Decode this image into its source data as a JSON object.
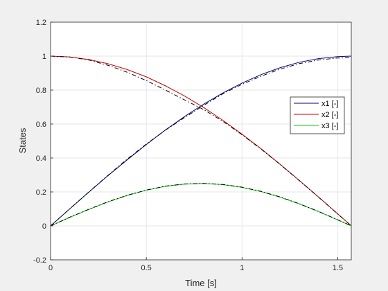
{
  "chart_data": {
    "type": "line",
    "title": "",
    "xlabel": "Time [s]",
    "ylabel": "States",
    "xlim": [
      0,
      1.5708
    ],
    "ylim": [
      -0.2,
      1.2
    ],
    "xticks": [
      0,
      0.5,
      1,
      1.5
    ],
    "xtick_labels": [
      "0",
      "0.5",
      "1",
      "1.5"
    ],
    "yticks": [
      -0.2,
      0,
      0.2,
      0.4,
      0.6,
      0.8,
      1,
      1.2
    ],
    "ytick_labels": [
      "-0.2",
      "0",
      "0.2",
      "0.4",
      "0.6",
      "0.8",
      "1",
      "1.2"
    ],
    "grid": true,
    "legend": {
      "position": "right",
      "entries": [
        "x1 [-]",
        "x2 [-]",
        "x3 [-]"
      ]
    },
    "series": [
      {
        "name": "x1 [-]",
        "color": "#00007f",
        "style": "solid",
        "x": [
          0,
          0.1,
          0.2,
          0.3,
          0.4,
          0.5,
          0.6,
          0.7,
          0.8,
          0.9,
          1.0,
          1.1,
          1.2,
          1.3,
          1.4,
          1.5,
          1.5708
        ],
        "y": [
          0,
          0.1,
          0.199,
          0.296,
          0.389,
          0.479,
          0.565,
          0.644,
          0.717,
          0.783,
          0.841,
          0.891,
          0.932,
          0.964,
          0.985,
          0.997,
          1.0
        ]
      },
      {
        "name": "x2 [-]",
        "color": "#cc0000",
        "style": "solid",
        "x": [
          0,
          0.1,
          0.2,
          0.3,
          0.4,
          0.5,
          0.6,
          0.7,
          0.8,
          0.9,
          1.0,
          1.1,
          1.2,
          1.3,
          1.4,
          1.5,
          1.5708
        ],
        "y": [
          1.0,
          0.995,
          0.98,
          0.955,
          0.921,
          0.878,
          0.825,
          0.765,
          0.697,
          0.622,
          0.54,
          0.454,
          0.362,
          0.267,
          0.17,
          0.071,
          0
        ]
      },
      {
        "name": "x3 [-]",
        "color": "#00cc00",
        "style": "solid",
        "x": [
          0,
          0.1,
          0.2,
          0.3,
          0.4,
          0.5,
          0.6,
          0.7,
          0.8,
          0.9,
          1.0,
          1.1,
          1.2,
          1.3,
          1.4,
          1.5,
          1.5708
        ],
        "y": [
          0,
          0.05,
          0.097,
          0.141,
          0.179,
          0.21,
          0.233,
          0.246,
          0.25,
          0.243,
          0.227,
          0.202,
          0.169,
          0.129,
          0.084,
          0.035,
          0
        ]
      },
      {
        "color": "#000000",
        "style": "dashdot",
        "x": [
          0,
          0.1,
          0.2,
          0.3,
          0.4,
          0.5,
          0.6,
          0.7,
          0.8,
          0.9,
          1.0,
          1.1,
          1.2,
          1.3,
          1.4,
          1.5,
          1.5708
        ],
        "y": [
          0,
          0.1,
          0.2,
          0.298,
          0.393,
          0.482,
          0.564,
          0.638,
          0.71,
          0.778,
          0.834,
          0.882,
          0.924,
          0.956,
          0.977,
          0.989,
          0.99
        ]
      },
      {
        "color": "#000000",
        "style": "dashdot",
        "x": [
          0,
          0.1,
          0.2,
          0.3,
          0.4,
          0.5,
          0.6,
          0.7,
          0.8,
          0.9,
          1.0,
          1.1,
          1.2,
          1.3,
          1.4,
          1.5,
          1.5708
        ],
        "y": [
          1.0,
          0.995,
          0.977,
          0.946,
          0.905,
          0.856,
          0.8,
          0.742,
          0.685,
          0.616,
          0.537,
          0.452,
          0.361,
          0.266,
          0.169,
          0.07,
          0
        ]
      },
      {
        "color": "#000000",
        "style": "dashdot",
        "x": [
          0,
          0.1,
          0.2,
          0.3,
          0.4,
          0.5,
          0.6,
          0.7,
          0.8,
          0.9,
          1.0,
          1.1,
          1.2,
          1.3,
          1.4,
          1.5,
          1.5708
        ],
        "y": [
          0,
          0.051,
          0.098,
          0.142,
          0.18,
          0.211,
          0.234,
          0.247,
          0.25,
          0.244,
          0.228,
          0.203,
          0.17,
          0.13,
          0.085,
          0.036,
          0
        ]
      }
    ]
  }
}
